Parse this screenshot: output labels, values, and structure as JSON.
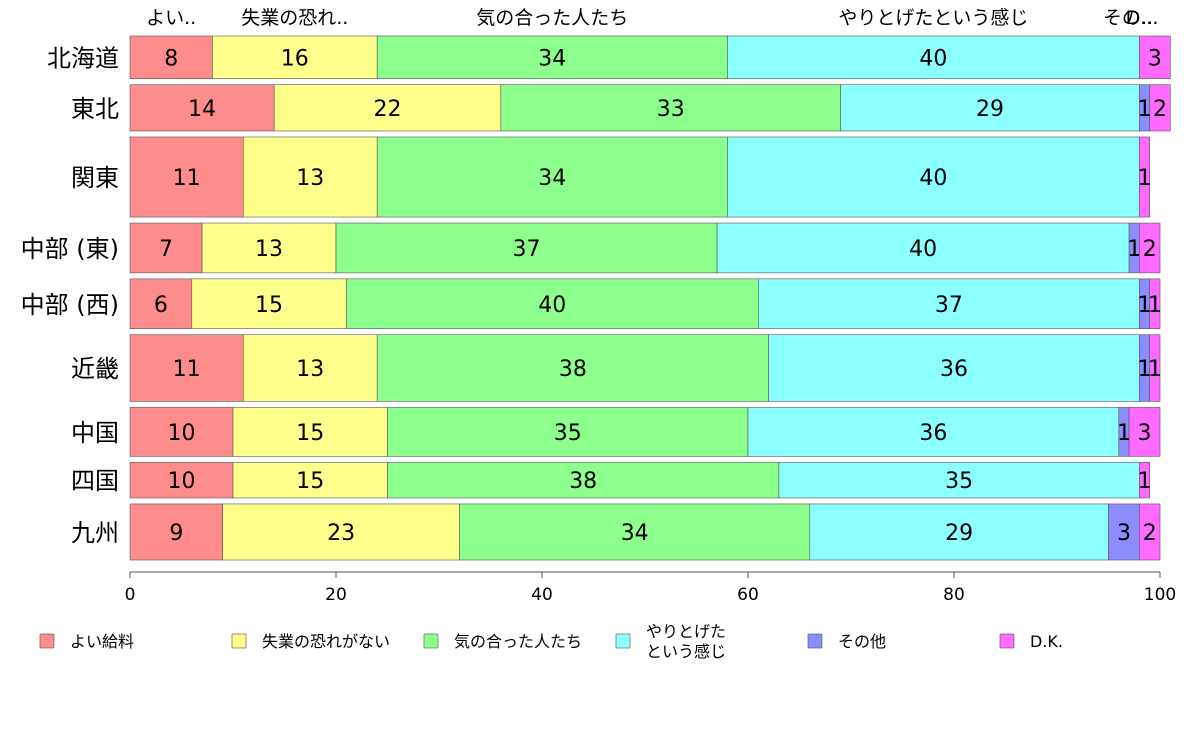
{
  "chart_data": {
    "type": "bar",
    "orientation": "horizontal",
    "stacked": true,
    "xlim": [
      0,
      100
    ],
    "xticks": [
      0,
      20,
      40,
      60,
      80,
      100
    ],
    "categories": [
      "北海道",
      "東北",
      "関東",
      "中部 (東)",
      "中部 (西)",
      "近畿",
      "中国",
      "四国",
      "九州"
    ],
    "row_weights": [
      48,
      52,
      90,
      56,
      56,
      75,
      55,
      40,
      63
    ],
    "series": [
      {
        "name": "よい給料",
        "short_label": "よい..",
        "color": "#ff8c8c",
        "values": [
          8,
          14,
          11,
          7,
          6,
          11,
          10,
          10,
          9
        ]
      },
      {
        "name": "失業の恐れがない",
        "short_label": "失業の恐れ..",
        "color": "#ffff8c",
        "values": [
          16,
          22,
          13,
          13,
          15,
          13,
          15,
          15,
          23
        ]
      },
      {
        "name": "気の合った人たち",
        "short_label": "気の合った人たち",
        "color": "#8cff8c",
        "values": [
          34,
          33,
          34,
          37,
          40,
          38,
          35,
          38,
          34
        ]
      },
      {
        "name": "やりとげたという感じ",
        "legend_lines": [
          "やりとげた",
          "という感じ"
        ],
        "short_label": "やりとげたという感じ",
        "color": "#8cffff",
        "values": [
          40,
          29,
          40,
          40,
          37,
          36,
          36,
          35,
          29
        ]
      },
      {
        "name": "その他",
        "short_label": "その..",
        "color": "#8c8cff",
        "values": [
          0,
          1,
          0,
          1,
          1,
          1,
          1,
          0,
          3
        ]
      },
      {
        "name": "D.K.",
        "short_label": "D...",
        "color": "#ff6bff",
        "values": [
          3,
          2,
          1,
          2,
          1,
          1,
          3,
          1,
          2
        ]
      }
    ],
    "segment_labels": [
      [
        "8",
        "16",
        "34",
        "40",
        "",
        "3"
      ],
      [
        "14",
        "22",
        "33",
        "29",
        "1",
        "2"
      ],
      [
        "11",
        "13",
        "34",
        "40",
        "",
        "1"
      ],
      [
        "7",
        "13",
        "37",
        "40",
        "1",
        "2"
      ],
      [
        "6",
        "15",
        "40",
        "37",
        "1",
        "1"
      ],
      [
        "11",
        "13",
        "38",
        "36",
        "1",
        "1"
      ],
      [
        "10",
        "15",
        "35",
        "36",
        "1",
        "3"
      ],
      [
        "10",
        "15",
        "38",
        "35",
        "",
        "1"
      ],
      [
        "9",
        "23",
        "34",
        "29",
        "3",
        "2"
      ]
    ],
    "title": "",
    "xlabel": "",
    "ylabel": "",
    "legend_position": "bottom",
    "grid": false
  }
}
